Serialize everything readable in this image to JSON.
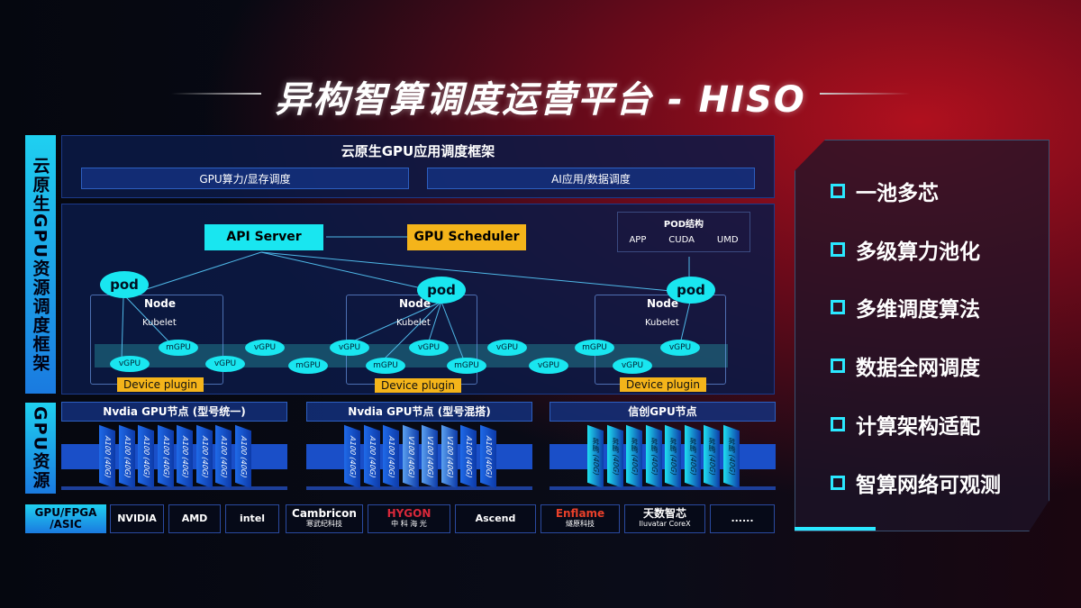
{
  "title": "异构智算调度运营平台 - HISO",
  "left_labels": {
    "framework": "云原生GPU资源调度框架",
    "resources": "GPU资源",
    "chips": "GPU/FPGA /ASIC"
  },
  "framework": {
    "title": "云原生GPU应用调度框架",
    "bar_left": "GPU算力/显存调度",
    "bar_right": "AI应用/数据调度",
    "api_server": "API Server",
    "gpu_scheduler": "GPU Scheduler",
    "pod_struct": {
      "title": "POD结构",
      "items": [
        "APP",
        "CUDA",
        "UMD"
      ]
    },
    "pod": "pod",
    "node": "Node",
    "kubelet": "Kubelet",
    "device_plugin": "Device plugin",
    "gpus": [
      "vGPU",
      "mGPU",
      "vGPU",
      "vGPU",
      "mGPU",
      "vGPU",
      "mGPU",
      "vGPU",
      "mGPU",
      "vGPU",
      "vGPU",
      "mGPU",
      "vGPU",
      "vGPU"
    ]
  },
  "nodes": [
    {
      "title": "Nvdia GPU节点 (型号统一)",
      "cards": [
        "A100 (40G)",
        "A100 (40G)",
        "A100 (40G)",
        "A100 (40G)",
        "A100 (40G)",
        "A100 (40G)",
        "A100 (40G)",
        "A100 (40G)"
      ],
      "color": "#1f6ae8"
    },
    {
      "title": "Nvdia GPU节点 (型号混搭)",
      "cards": [
        "A100 (40G)",
        "A100 (40G)",
        "A100 (40G)",
        "V100 (40G)",
        "V100 (40G)",
        "V100 (40G)",
        "A100 (40G)",
        "A100 (40G)"
      ],
      "color": "#1f6ae8"
    },
    {
      "title": "信创GPU节点",
      "cards": [
        "昇腾 (40G)",
        "昇腾 (40G)",
        "昇腾 (40G)",
        "昇腾 (40G)",
        "昇腾 (40G)",
        "昇腾 (40G)",
        "昇腾 (40G)",
        "昇腾 (40G)"
      ],
      "color": "#1ee0f0"
    }
  ],
  "vendors": [
    {
      "name": "NVIDIA"
    },
    {
      "name": "AMD"
    },
    {
      "name": "intel"
    },
    {
      "name": "Cambricon",
      "sub": "寒武纪科技"
    },
    {
      "name": "HYGON",
      "sub": "中 科 海 光"
    },
    {
      "name": "Ascend"
    },
    {
      "name": "Enflame",
      "sub": "燧原科技"
    },
    {
      "name": "天数智芯",
      "sub": "Iluvatar CoreX"
    },
    {
      "name": "......"
    }
  ],
  "features": [
    "一池多芯",
    "多级算力池化",
    "多维调度算法",
    "数据全网调度",
    "计算架构适配",
    "智算网络可观测"
  ]
}
